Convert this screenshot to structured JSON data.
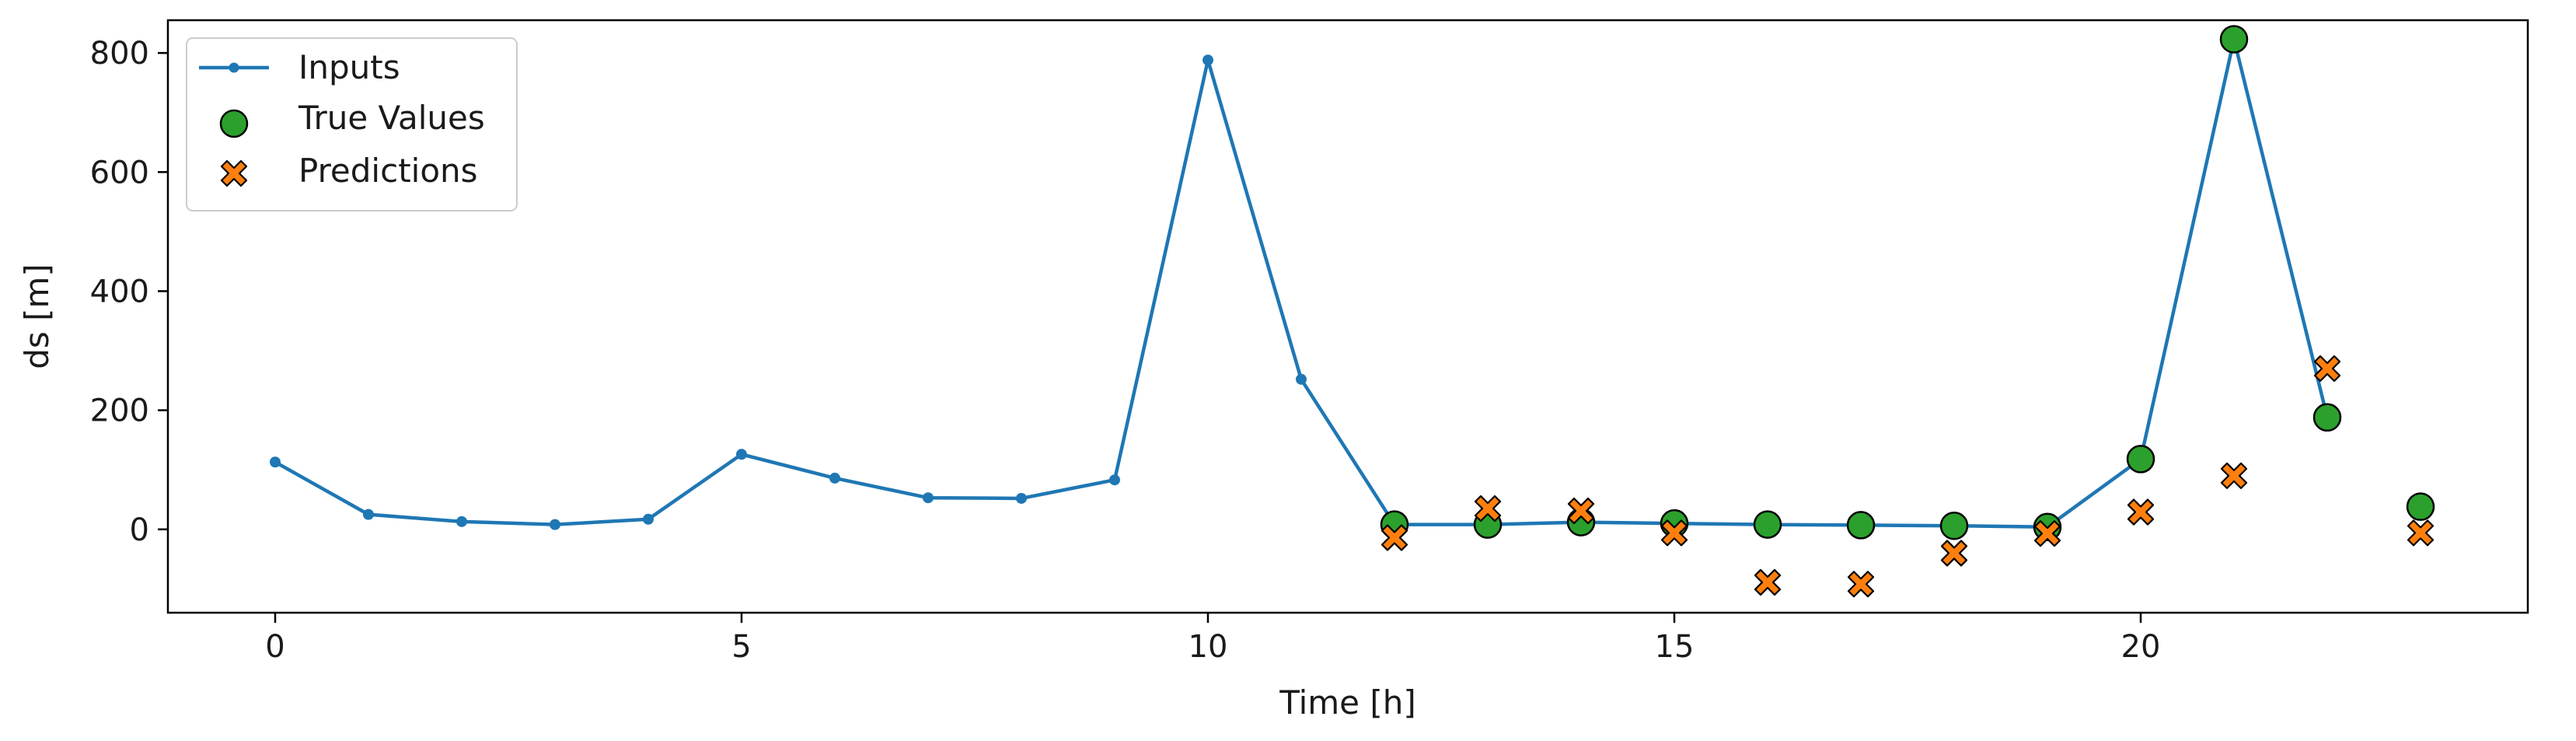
{
  "chart_data": {
    "type": "line",
    "xlabel": "Time [h]",
    "ylabel": "ds [m]",
    "xlim": [
      -1.15,
      24.15
    ],
    "ylim": [
      -140,
      855
    ],
    "xticks": [
      0,
      5,
      10,
      15,
      20
    ],
    "yticks": [
      0,
      200,
      400,
      600,
      800
    ],
    "grid": false,
    "legend_position": "top-left",
    "series": [
      {
        "name": "Inputs",
        "kind": "line-marker",
        "color": "#1f77b4",
        "x": [
          0,
          1,
          2,
          3,
          4,
          5,
          6,
          7,
          8,
          9,
          10,
          11,
          12,
          13,
          14,
          15,
          16,
          17,
          18,
          19,
          20,
          21,
          22
        ],
        "y": [
          113,
          25,
          13,
          8,
          17,
          126,
          86,
          53,
          52,
          83,
          788,
          252,
          8,
          8,
          12,
          10,
          8,
          7,
          6,
          4,
          118,
          823,
          188
        ]
      },
      {
        "name": "True Values",
        "kind": "scatter-circle",
        "color": "#2ca02c",
        "x": [
          12,
          13,
          14,
          15,
          16,
          17,
          18,
          19,
          20,
          21,
          22,
          23
        ],
        "y": [
          8,
          8,
          12,
          10,
          8,
          7,
          6,
          4,
          118,
          823,
          188,
          38
        ]
      },
      {
        "name": "Predictions",
        "kind": "scatter-x",
        "color": "#ff7f0e",
        "x": [
          12,
          13,
          14,
          15,
          16,
          17,
          18,
          19,
          20,
          21,
          22,
          23
        ],
        "y": [
          -14,
          35,
          31,
          -6,
          -89,
          -92,
          -40,
          -7,
          29,
          90,
          270,
          -6
        ]
      }
    ]
  }
}
